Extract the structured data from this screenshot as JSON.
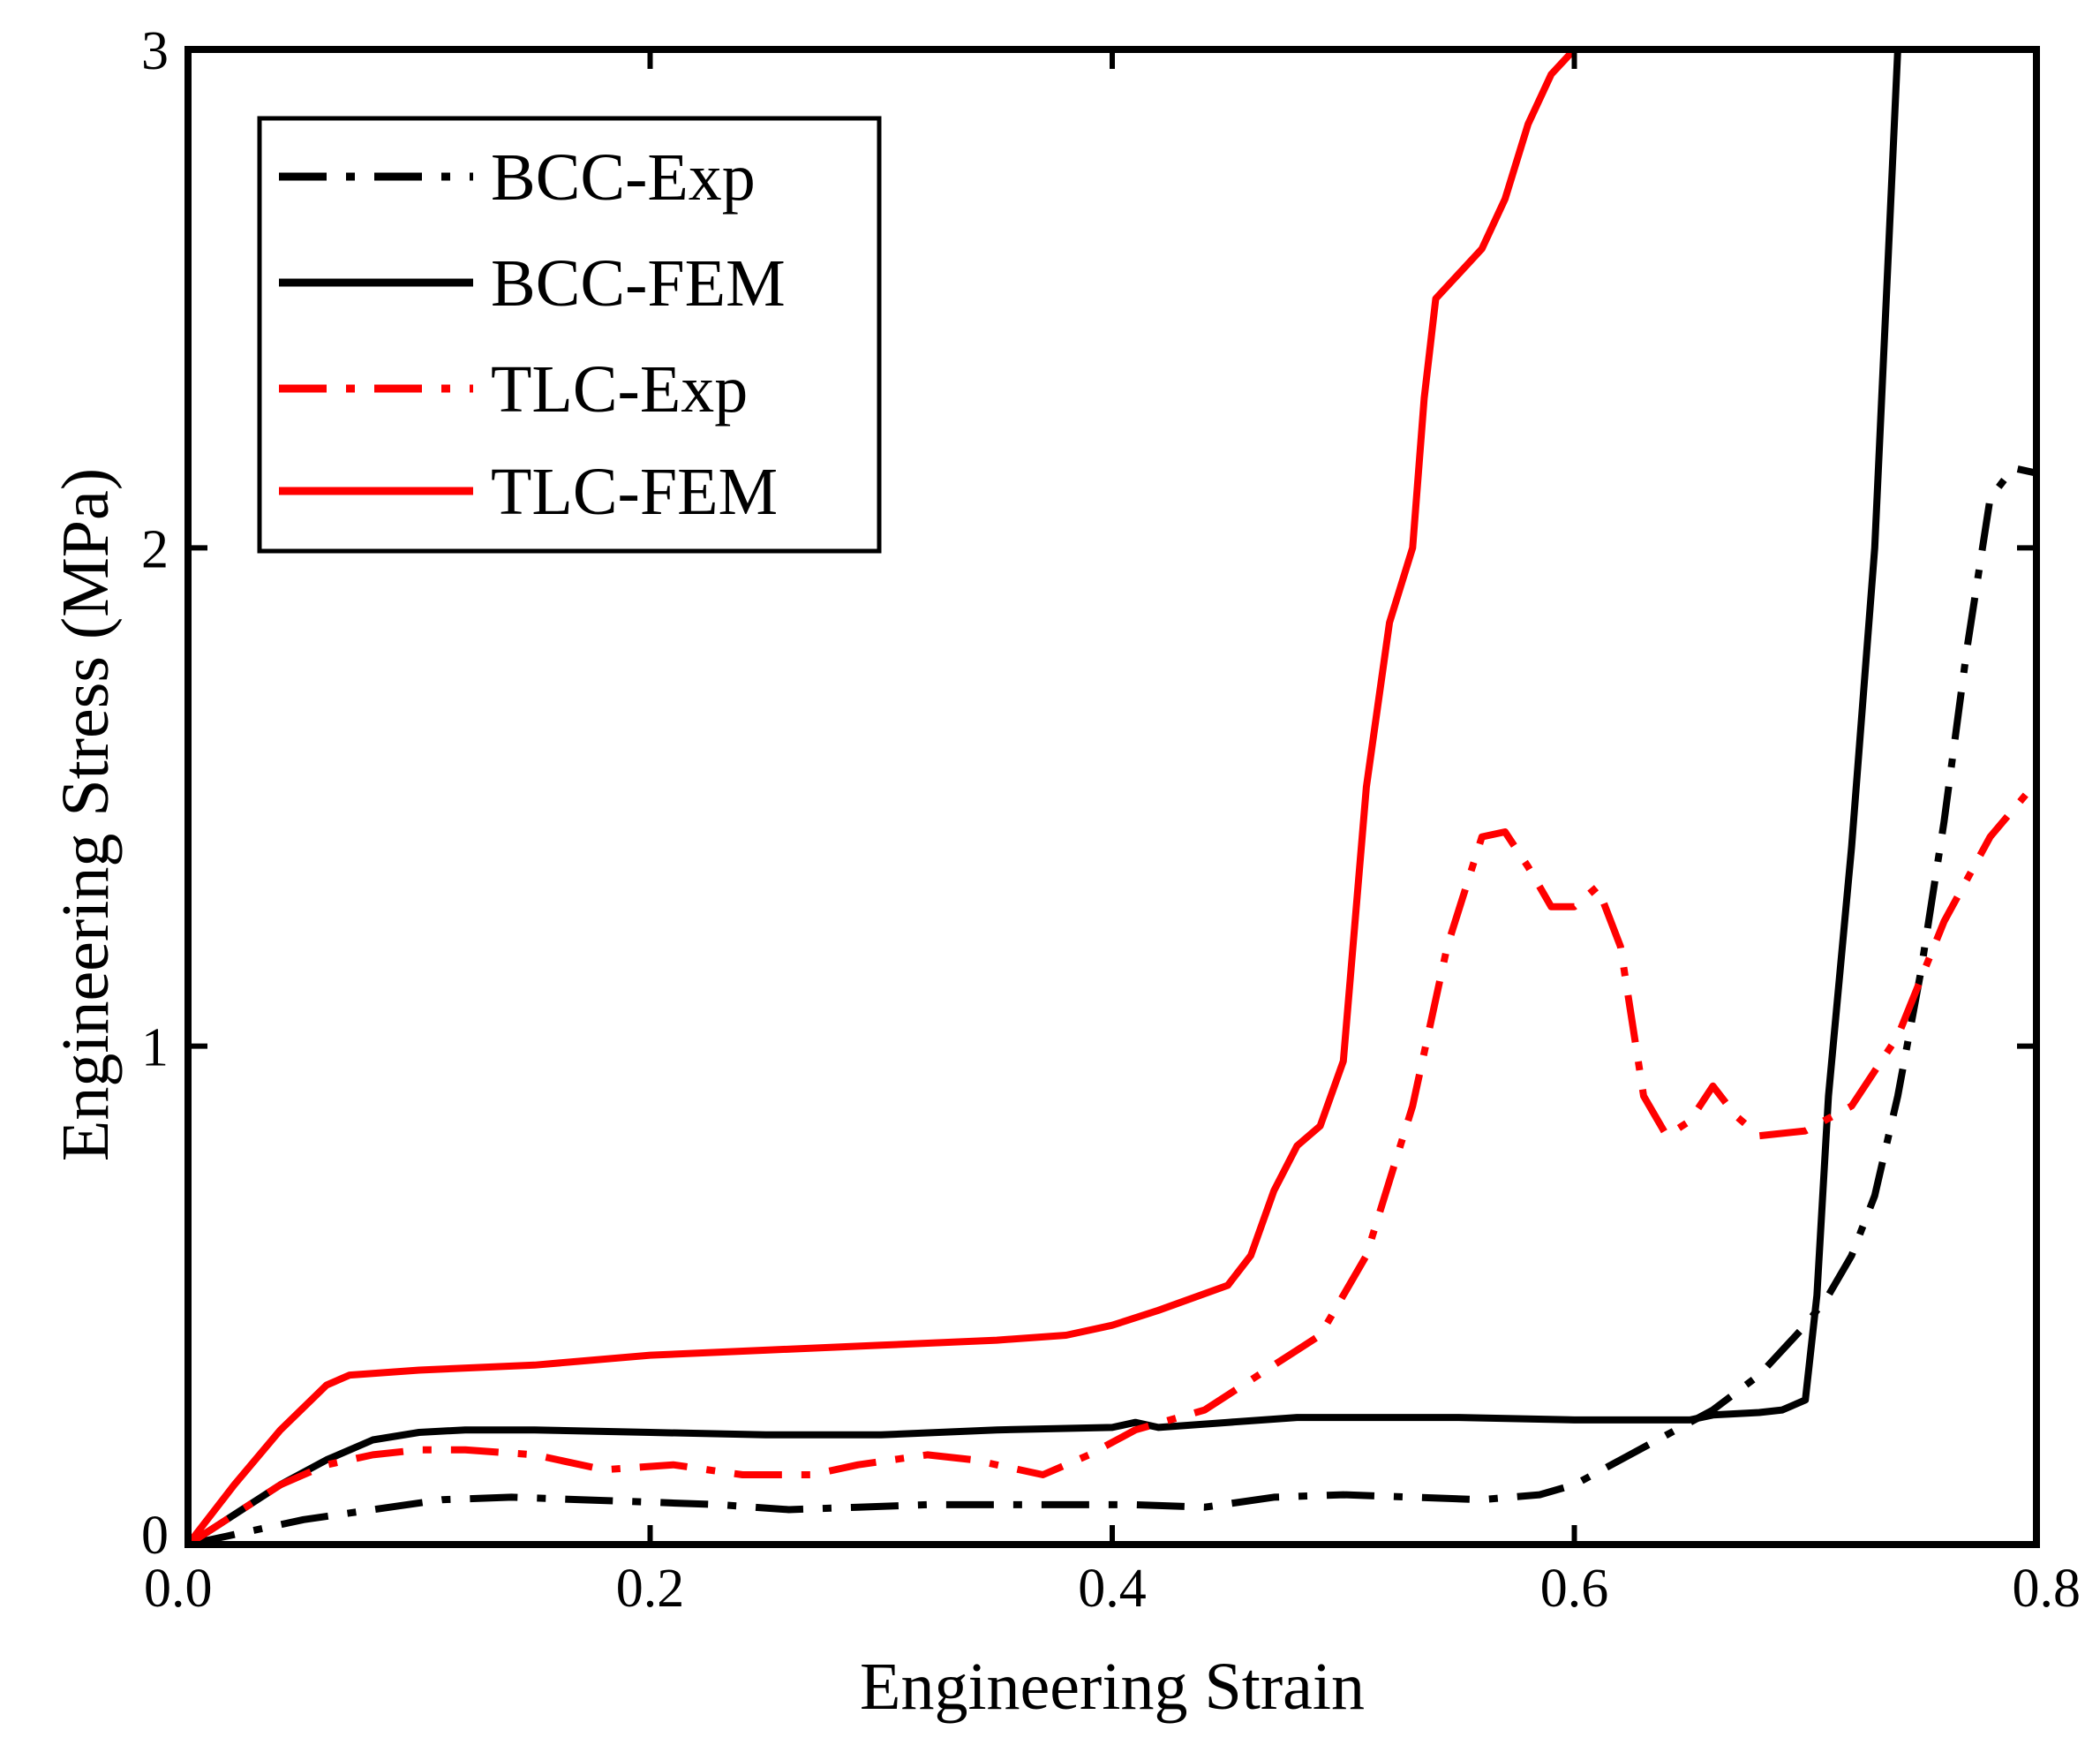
{
  "chart_data": {
    "type": "line",
    "title": "",
    "xlabel": "Engineering Strain",
    "ylabel": "Engineering Stress (MPa)",
    "xlim": [
      0,
      0.8
    ],
    "ylim": [
      0,
      3
    ],
    "xticks": [
      0,
      0.2,
      0.4,
      0.6,
      0.8
    ],
    "xtick_labels": [
      "0.0",
      "0.2",
      "0.4",
      "0.6",
      "0.8"
    ],
    "yticks": [
      0,
      1,
      2,
      3
    ],
    "ytick_labels": [
      "0",
      "1",
      "2",
      "3"
    ],
    "grid": false,
    "legend_position": "top-left",
    "series": [
      {
        "name": "BCC-Exp",
        "color": "#000000",
        "style": "dashdot",
        "x": [
          0,
          0.02,
          0.05,
          0.08,
          0.11,
          0.14,
          0.17,
          0.2,
          0.23,
          0.26,
          0.29,
          0.32,
          0.35,
          0.38,
          0.41,
          0.44,
          0.47,
          0.5,
          0.53,
          0.56,
          0.585,
          0.6,
          0.62,
          0.64,
          0.66,
          0.68,
          0.7,
          0.71,
          0.72,
          0.73,
          0.74,
          0.75,
          0.76,
          0.77,
          0.78,
          0.79,
          0.8
        ],
        "y": [
          0,
          0.02,
          0.05,
          0.07,
          0.09,
          0.095,
          0.09,
          0.085,
          0.08,
          0.07,
          0.075,
          0.08,
          0.08,
          0.08,
          0.08,
          0.075,
          0.095,
          0.1,
          0.095,
          0.09,
          0.1,
          0.12,
          0.17,
          0.22,
          0.27,
          0.34,
          0.44,
          0.5,
          0.58,
          0.7,
          0.9,
          1.15,
          1.45,
          1.8,
          2.1,
          2.16,
          2.15
        ]
      },
      {
        "name": "BCC-FEM",
        "color": "#000000",
        "style": "solid",
        "x": [
          0,
          0.02,
          0.04,
          0.06,
          0.08,
          0.1,
          0.12,
          0.15,
          0.2,
          0.25,
          0.3,
          0.35,
          0.4,
          0.41,
          0.42,
          0.45,
          0.48,
          0.5,
          0.55,
          0.6,
          0.65,
          0.66,
          0.68,
          0.69,
          0.7,
          0.705,
          0.71,
          0.72,
          0.73,
          0.735,
          0.74,
          0.743,
          0.745
        ],
        "y": [
          0,
          0.06,
          0.12,
          0.17,
          0.21,
          0.225,
          0.23,
          0.23,
          0.225,
          0.22,
          0.22,
          0.23,
          0.235,
          0.245,
          0.235,
          0.245,
          0.255,
          0.255,
          0.255,
          0.25,
          0.25,
          0.26,
          0.265,
          0.27,
          0.29,
          0.5,
          0.9,
          1.4,
          2.0,
          2.5,
          3.0,
          3.0,
          3.0
        ]
      },
      {
        "name": "TLC-Exp",
        "color": "#ff0000",
        "style": "dashdot",
        "x": [
          0,
          0.02,
          0.04,
          0.06,
          0.08,
          0.1,
          0.12,
          0.15,
          0.18,
          0.21,
          0.24,
          0.27,
          0.29,
          0.32,
          0.34,
          0.37,
          0.39,
          0.41,
          0.44,
          0.47,
          0.49,
          0.51,
          0.53,
          0.545,
          0.56,
          0.57,
          0.58,
          0.59,
          0.6,
          0.61,
          0.62,
          0.63,
          0.64,
          0.65,
          0.66,
          0.67,
          0.68,
          0.7,
          0.72,
          0.74,
          0.76,
          0.78,
          0.8
        ],
        "y": [
          0,
          0.06,
          0.12,
          0.16,
          0.18,
          0.19,
          0.19,
          0.18,
          0.15,
          0.16,
          0.14,
          0.14,
          0.16,
          0.18,
          0.17,
          0.14,
          0.18,
          0.23,
          0.27,
          0.36,
          0.42,
          0.58,
          0.88,
          1.2,
          1.42,
          1.43,
          1.36,
          1.28,
          1.28,
          1.32,
          1.2,
          0.9,
          0.82,
          0.85,
          0.92,
          0.86,
          0.82,
          0.83,
          0.88,
          1.02,
          1.25,
          1.42,
          1.53
        ]
      },
      {
        "name": "TLC-FEM",
        "color": "#ff0000",
        "style": "solid",
        "x": [
          0,
          0.02,
          0.04,
          0.06,
          0.07,
          0.1,
          0.15,
          0.2,
          0.25,
          0.3,
          0.35,
          0.38,
          0.4,
          0.42,
          0.45,
          0.46,
          0.47,
          0.48,
          0.49,
          0.5,
          0.51,
          0.52,
          0.53,
          0.535,
          0.54,
          0.55,
          0.56,
          0.57,
          0.58,
          0.59,
          0.6,
          0.61
        ],
        "y": [
          0,
          0.12,
          0.23,
          0.32,
          0.34,
          0.35,
          0.36,
          0.38,
          0.39,
          0.4,
          0.41,
          0.42,
          0.44,
          0.47,
          0.52,
          0.58,
          0.71,
          0.8,
          0.84,
          0.97,
          1.52,
          1.85,
          2.0,
          2.3,
          2.5,
          2.55,
          2.6,
          2.7,
          2.85,
          2.95,
          3.0,
          3.0
        ]
      }
    ]
  }
}
